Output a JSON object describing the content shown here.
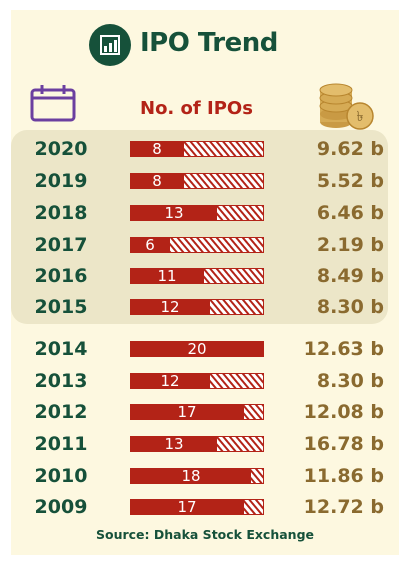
{
  "header": {
    "title": "IPO Trend",
    "column_label": "No. of IPOs"
  },
  "icons": {
    "logo": "bar-chart-icon",
    "left": "calendar-icon",
    "right": "coins-taka-icon"
  },
  "colors": {
    "green": "#16513a",
    "red": "#b32317",
    "gold": "#8a6a2f",
    "band": "#ece6c8",
    "background": "#fdf8e0"
  },
  "chart_data": {
    "type": "bar",
    "title": "IPO Trend",
    "max": 20,
    "rows": [
      {
        "year": "2020",
        "ipos": 8,
        "amount": "9.62 b"
      },
      {
        "year": "2019",
        "ipos": 8,
        "amount": "5.52 b"
      },
      {
        "year": "2018",
        "ipos": 13,
        "amount": "6.46 b"
      },
      {
        "year": "2017",
        "ipos": 6,
        "amount": "2.19 b"
      },
      {
        "year": "2016",
        "ipos": 11,
        "amount": "8.49 b"
      },
      {
        "year": "2015",
        "ipos": 12,
        "amount": "8.30 b"
      },
      {
        "year": "2014",
        "ipos": 20,
        "amount": "12.63 b"
      },
      {
        "year": "2013",
        "ipos": 12,
        "amount": "8.30 b"
      },
      {
        "year": "2012",
        "ipos": 17,
        "amount": "12.08 b"
      },
      {
        "year": "2011",
        "ipos": 13,
        "amount": "16.78 b"
      },
      {
        "year": "2010",
        "ipos": 18,
        "amount": "11.86 b"
      },
      {
        "year": "2009",
        "ipos": 17,
        "amount": "12.72 b"
      }
    ]
  },
  "source": "Source: Dhaka Stock Exchange"
}
